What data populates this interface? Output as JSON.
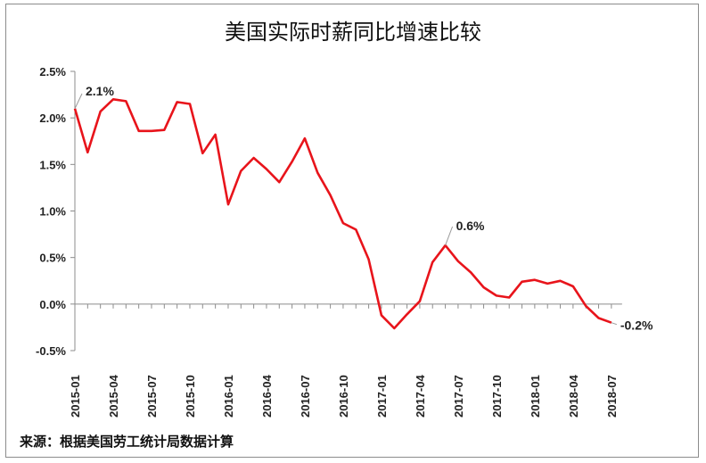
{
  "chart_data": {
    "type": "line",
    "title": "美国实际时薪同比增速比较",
    "source": "来源：根据美国劳工统计局数据计算",
    "xlabel": "",
    "ylabel": "",
    "ylim": [
      -0.5,
      2.5
    ],
    "grid": false,
    "y_ticks": [
      "2.5%",
      "2.0%",
      "1.5%",
      "1.0%",
      "0.5%",
      "0.0%",
      "-0.5%"
    ],
    "x_tick_labels": [
      "2015-01",
      "2015-04",
      "2015-07",
      "2015-10",
      "2016-01",
      "2016-04",
      "2016-07",
      "2016-10",
      "2017-01",
      "2017-04",
      "2017-07",
      "2017-10",
      "2018-01",
      "2018-04",
      "2018-07"
    ],
    "x": [
      "2015-01",
      "2015-02",
      "2015-03",
      "2015-04",
      "2015-05",
      "2015-06",
      "2015-07",
      "2015-08",
      "2015-09",
      "2015-10",
      "2015-11",
      "2015-12",
      "2016-01",
      "2016-02",
      "2016-03",
      "2016-04",
      "2016-05",
      "2016-06",
      "2016-07",
      "2016-08",
      "2016-09",
      "2016-10",
      "2016-11",
      "2016-12",
      "2017-01",
      "2017-02",
      "2017-03",
      "2017-04",
      "2017-05",
      "2017-06",
      "2017-07",
      "2017-08",
      "2017-09",
      "2017-10",
      "2017-11",
      "2017-12",
      "2018-01",
      "2018-02",
      "2018-03",
      "2018-04",
      "2018-05",
      "2018-06",
      "2018-07"
    ],
    "series": [
      {
        "color": "#e8141b",
        "values": [
          2.1,
          1.63,
          2.07,
          2.2,
          2.18,
          1.86,
          1.86,
          1.87,
          2.17,
          2.15,
          1.62,
          1.82,
          1.07,
          1.43,
          1.57,
          1.45,
          1.31,
          1.53,
          1.78,
          1.41,
          1.17,
          0.87,
          0.8,
          0.48,
          -0.12,
          -0.26,
          -0.11,
          0.03,
          0.45,
          0.63,
          0.46,
          0.34,
          0.18,
          0.09,
          0.07,
          0.24,
          0.26,
          0.22,
          0.25,
          0.19,
          -0.02,
          -0.15,
          -0.2
        ]
      }
    ],
    "annotations": [
      {
        "index": 0,
        "text": "2.1%"
      },
      {
        "index": 29,
        "text": "0.6%"
      },
      {
        "index": 42,
        "text": "-0.2%"
      }
    ]
  }
}
